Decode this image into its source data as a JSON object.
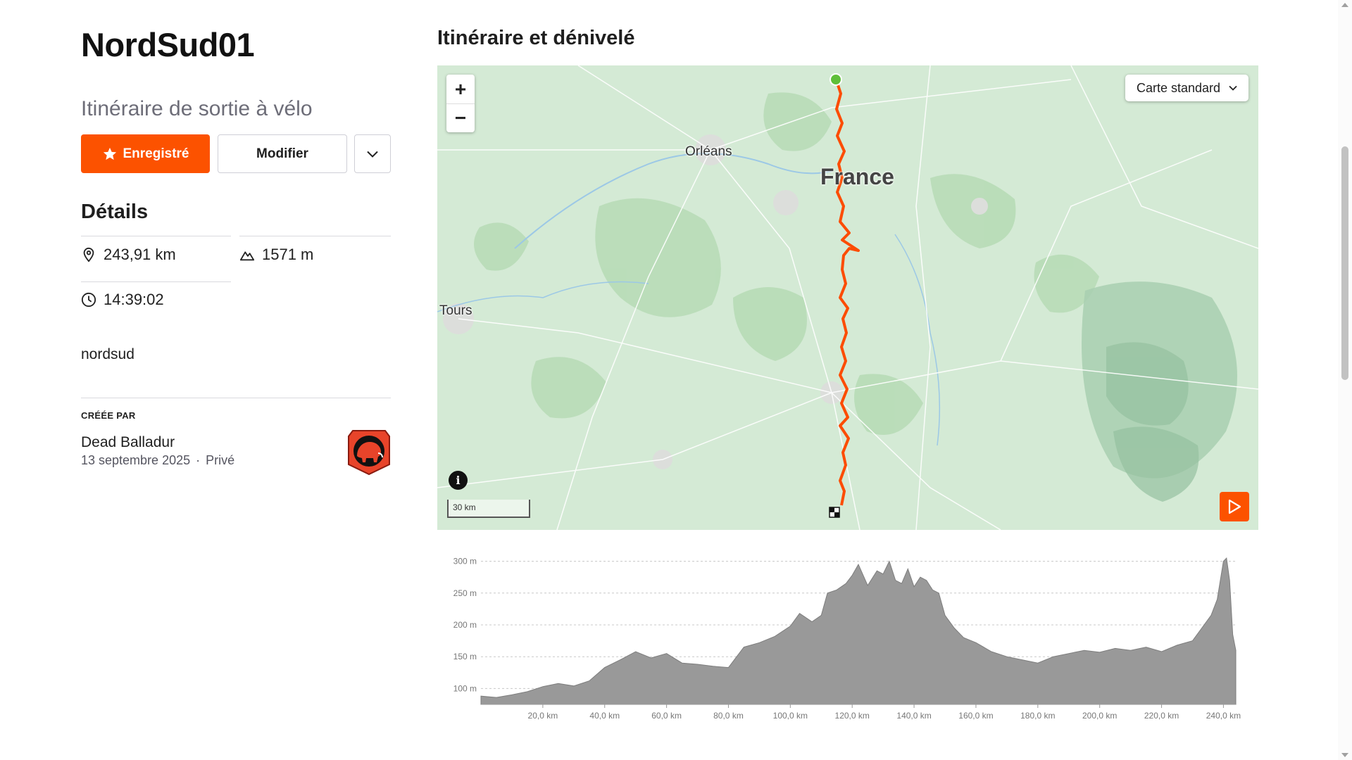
{
  "route": {
    "title": "NordSud01",
    "subtitle": "Itinéraire de sortie à vélo"
  },
  "actions": {
    "saved_label": "Enregistré",
    "edit_label": "Modifier"
  },
  "details": {
    "heading": "Détails",
    "distance": "243,91 km",
    "elevation_gain": "1571 m",
    "duration": "14:39:02"
  },
  "tag": "nordsud",
  "creator": {
    "label": "CRÉÉE PAR",
    "name": "Dead Balladur",
    "date": "13 septembre 2025",
    "separator": "·",
    "visibility": "Privé"
  },
  "map": {
    "heading": "Itinéraire et dénivelé",
    "type_selected": "Carte standard",
    "labels": {
      "country": "France",
      "city1": "Orléans",
      "city2": "Tours"
    },
    "scale": "30 km",
    "route_color": "#fc4c02",
    "start_color": "#5fbf3a"
  },
  "colors": {
    "accent": "#fc5200",
    "elevation_fill": "#999999"
  },
  "chart_data": {
    "type": "area",
    "title": "",
    "xlabel": "",
    "ylabel": "",
    "x_unit": "km",
    "y_unit": "m",
    "xlim": [
      0,
      244
    ],
    "ylim": [
      75,
      325
    ],
    "y_ticks": [
      "100 m",
      "150 m",
      "200 m",
      "250 m",
      "300 m"
    ],
    "y_tick_values": [
      100,
      150,
      200,
      250,
      300
    ],
    "x_ticks": [
      "20,0 km",
      "40,0 km",
      "60,0 km",
      "80,0 km",
      "100,0 km",
      "120,0 km",
      "140,0 km",
      "160,0 km",
      "180,0 km",
      "200,0 km",
      "220,0 km",
      "240,0 km"
    ],
    "x_tick_values": [
      20,
      40,
      60,
      80,
      100,
      120,
      140,
      160,
      180,
      200,
      220,
      240
    ],
    "grid": true,
    "x": [
      0,
      5,
      10,
      15,
      20,
      25,
      30,
      35,
      40,
      45,
      50,
      55,
      60,
      65,
      70,
      75,
      80,
      85,
      90,
      95,
      100,
      103,
      107,
      110,
      112,
      115,
      118,
      120,
      122,
      125,
      128,
      130,
      132,
      134,
      136,
      138,
      140,
      142,
      144,
      146,
      148,
      150,
      153,
      156,
      160,
      165,
      170,
      175,
      180,
      185,
      190,
      195,
      200,
      205,
      210,
      215,
      220,
      225,
      230,
      233,
      236,
      238,
      240,
      241,
      242,
      243,
      244
    ],
    "y": [
      88,
      86,
      90,
      95,
      103,
      108,
      104,
      112,
      133,
      145,
      158,
      148,
      155,
      140,
      138,
      135,
      133,
      165,
      172,
      182,
      198,
      218,
      205,
      215,
      250,
      255,
      265,
      278,
      295,
      262,
      285,
      280,
      300,
      270,
      265,
      288,
      260,
      275,
      270,
      255,
      250,
      215,
      195,
      180,
      172,
      158,
      150,
      145,
      140,
      150,
      155,
      160,
      157,
      163,
      160,
      165,
      158,
      168,
      175,
      195,
      215,
      240,
      300,
      305,
      270,
      185,
      160
    ]
  }
}
